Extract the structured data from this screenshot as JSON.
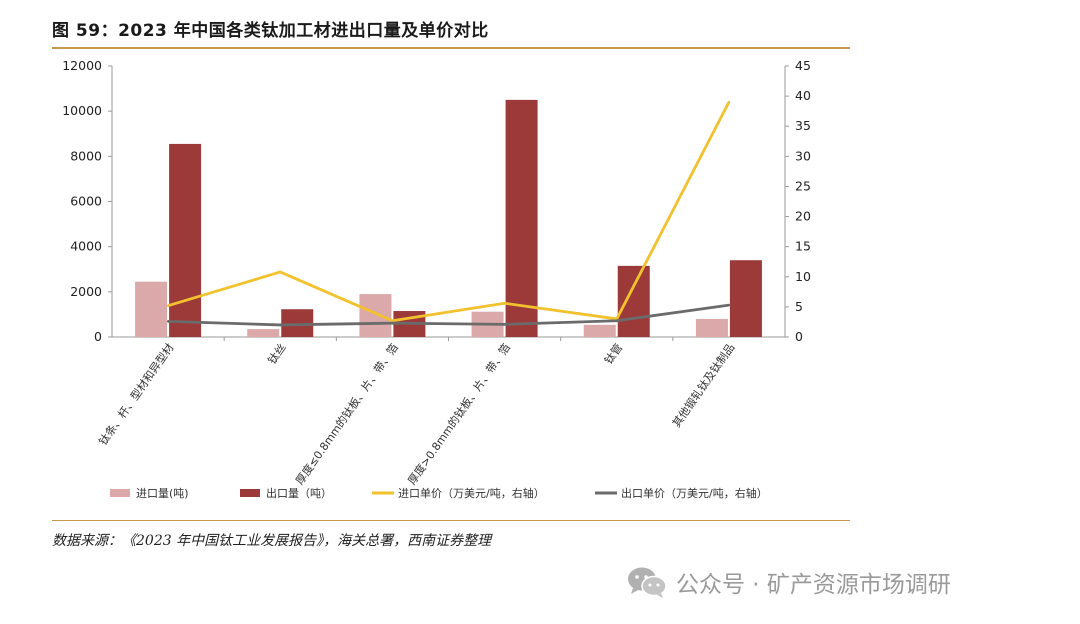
{
  "figure": {
    "title": "图 59：2023 年中国各类钛加工材进出口量及单价对比",
    "source": "数据来源：《2023 年中国钛工业发展报告》，海关总署，西南证券整理",
    "watermark": "公众号 · 矿产资源市场调研",
    "watermark_icon": "wechat-icon"
  },
  "chart_data": {
    "type": "bar",
    "categories": [
      "钛条、杆、型材和异型材",
      "钛丝",
      "厚度≤0.8mm的钛板、片、带、箔",
      "厚度>0.8mm的钛板、片、带、箔",
      "钛管",
      "其他锻轧钛及钛制品"
    ],
    "series": [
      {
        "name": "进口量(吨)",
        "type": "bar",
        "axis": "left",
        "color": "#dba9a9",
        "values": [
          2450,
          350,
          1900,
          1120,
          540,
          800
        ]
      },
      {
        "name": "出口量（吨）",
        "type": "bar",
        "axis": "left",
        "color": "#9c3a3a",
        "values": [
          8550,
          1230,
          1150,
          10500,
          3150,
          3400
        ]
      },
      {
        "name": "进口单价（万美元/吨，右轴）",
        "type": "line",
        "axis": "right",
        "color": "#f2c12e",
        "values": [
          5.2,
          10.8,
          2.7,
          5.6,
          3.0,
          39.0
        ]
      },
      {
        "name": "出口单价（万美元/吨，右轴）",
        "type": "line",
        "axis": "right",
        "color": "#6b6b6b",
        "values": [
          2.6,
          2.0,
          2.3,
          2.1,
          2.7,
          5.3
        ]
      }
    ],
    "y_left": {
      "min": 0,
      "max": 12000,
      "ticks": [
        "0",
        "2000",
        "4000",
        "6000",
        "8000",
        "10000",
        "12000"
      ]
    },
    "y_right": {
      "min": 0,
      "max": 45,
      "ticks": [
        "0",
        "5",
        "10",
        "15",
        "20",
        "25",
        "30",
        "35",
        "40",
        "45"
      ]
    },
    "grid": false,
    "legend_position": "bottom"
  }
}
